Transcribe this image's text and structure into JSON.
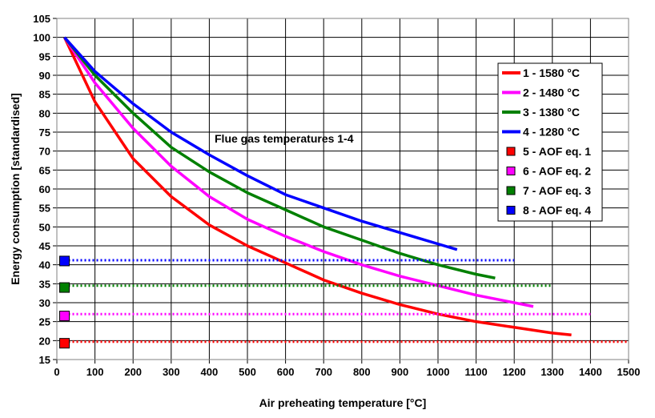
{
  "chart_data": {
    "type": "line",
    "title": "",
    "xlabel": "Air preheating temperature [°C]",
    "ylabel": "Energy consumption [standardised]",
    "xlim": [
      0,
      1500
    ],
    "ylim": [
      15,
      105
    ],
    "xticks": [
      0,
      100,
      200,
      300,
      400,
      500,
      600,
      700,
      800,
      900,
      1000,
      1100,
      1200,
      1300,
      1400,
      1500
    ],
    "yticks": [
      15,
      20,
      25,
      30,
      35,
      40,
      45,
      50,
      55,
      60,
      65,
      70,
      75,
      80,
      85,
      90,
      95,
      100,
      105
    ],
    "grid": true,
    "legend_position": "right",
    "annotation": "Flue gas temperatures 1-4",
    "series": [
      {
        "name": "1 - 1580 °C",
        "kind": "line",
        "color": "#ff0000",
        "x": [
          20,
          100,
          200,
          300,
          400,
          500,
          600,
          700,
          800,
          900,
          1000,
          1100,
          1200,
          1300,
          1350
        ],
        "y": [
          100,
          83,
          68,
          58,
          50.5,
          45,
          40.5,
          36,
          32.5,
          29.5,
          27,
          25,
          23.5,
          22,
          21.5
        ]
      },
      {
        "name": "2 - 1480 °C",
        "kind": "line",
        "color": "#ff00ff",
        "x": [
          20,
          100,
          200,
          300,
          400,
          500,
          600,
          700,
          800,
          900,
          1000,
          1100,
          1200,
          1250
        ],
        "y": [
          100,
          88,
          76,
          66,
          58,
          52,
          47.5,
          43.5,
          40,
          37,
          34.5,
          32,
          30,
          29
        ]
      },
      {
        "name": "3 - 1380 °C",
        "kind": "line",
        "color": "#008000",
        "x": [
          20,
          100,
          200,
          300,
          400,
          500,
          600,
          700,
          800,
          900,
          1000,
          1100,
          1150
        ],
        "y": [
          100,
          90,
          80,
          71,
          64.5,
          59,
          54.5,
          50,
          46.5,
          43,
          40,
          37.5,
          36.5
        ]
      },
      {
        "name": "4 - 1280 °C",
        "kind": "line",
        "color": "#0000ff",
        "x": [
          20,
          100,
          200,
          300,
          400,
          500,
          600,
          700,
          800,
          900,
          1000,
          1050
        ],
        "y": [
          100,
          91,
          82.5,
          75,
          69,
          63.5,
          58.5,
          55,
          51.5,
          48.5,
          45.5,
          44
        ]
      },
      {
        "name": "5 - AOF eq. 1",
        "kind": "marker",
        "color": "#ff0000",
        "x": [
          20
        ],
        "y": [
          19.3
        ],
        "line_x": [
          20,
          1500
        ],
        "line_y": 19.7
      },
      {
        "name": "6 - AOF eq. 2",
        "kind": "marker",
        "color": "#ff00ff",
        "x": [
          20
        ],
        "y": [
          26.5
        ],
        "line_x": [
          20,
          1400
        ],
        "line_y": 27
      },
      {
        "name": "7 - AOF eq. 3",
        "kind": "marker",
        "color": "#008000",
        "x": [
          20
        ],
        "y": [
          34
        ],
        "line_x": [
          20,
          1300
        ],
        "line_y": 34.5
      },
      {
        "name": "8 - AOF eq. 4",
        "kind": "marker",
        "color": "#0000ff",
        "x": [
          20
        ],
        "y": [
          41
        ],
        "line_x": [
          20,
          1200
        ],
        "line_y": 41.2
      }
    ]
  }
}
